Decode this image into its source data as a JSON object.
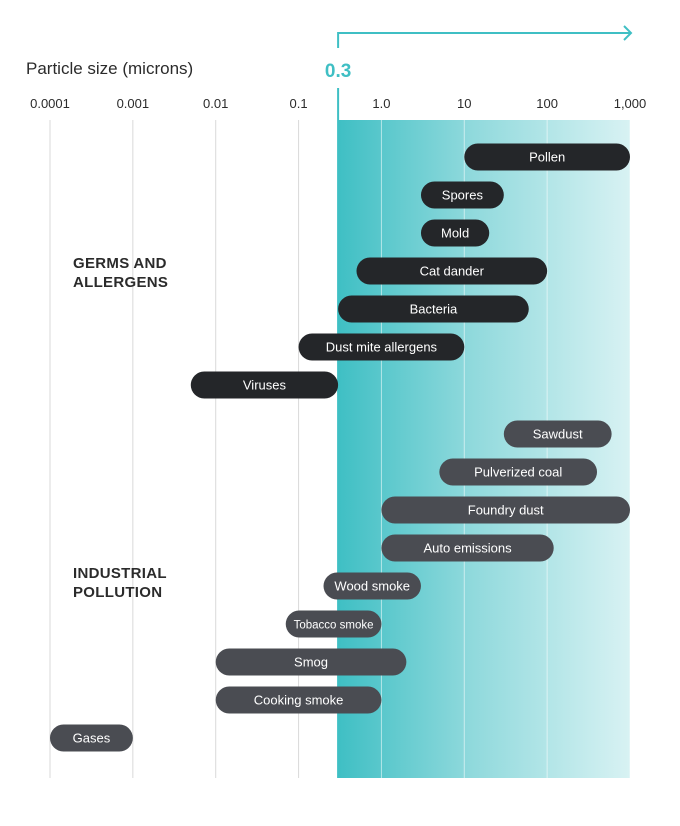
{
  "chart_data": {
    "type": "range-bar",
    "xlabel": "Particle size (microns)",
    "x_scale": "log",
    "xlim": [
      0.0001,
      1000
    ],
    "tick_labels": [
      "0.0001",
      "0.001",
      "0.01",
      "0.1",
      "1.0",
      "10",
      "100",
      "1,000"
    ],
    "tick_values": [
      0.0001,
      0.001,
      0.01,
      0.1,
      1,
      10,
      100,
      1000
    ],
    "marker": {
      "value": 0.3,
      "label": "0.3"
    },
    "colors": {
      "accent": "#3fbfc4",
      "germs": "#242629",
      "industrial": "#4a4c52",
      "grid": "#d9d9d9"
    },
    "groups": [
      {
        "name": "GERMS AND ALLERGENS",
        "lines": [
          "GERMS AND",
          "ALLERGENS"
        ],
        "color": "#242629",
        "items": [
          {
            "label": "Pollen",
            "min": 10,
            "max": 1000
          },
          {
            "label": "Spores",
            "min": 3,
            "max": 30
          },
          {
            "label": "Mold",
            "min": 3,
            "max": 20
          },
          {
            "label": "Cat dander",
            "min": 0.5,
            "max": 100
          },
          {
            "label": "Bacteria",
            "min": 0.3,
            "max": 60
          },
          {
            "label": "Dust mite allergens",
            "min": 0.1,
            "max": 10
          },
          {
            "label": "Viruses",
            "min": 0.005,
            "max": 0.3
          }
        ]
      },
      {
        "name": "INDUSTRIAL POLLUTION",
        "lines": [
          "INDUSTRIAL",
          "POLLUTION"
        ],
        "color": "#4a4c52",
        "items": [
          {
            "label": "Sawdust",
            "min": 30,
            "max": 600
          },
          {
            "label": "Pulverized coal",
            "min": 5,
            "max": 400
          },
          {
            "label": "Foundry dust",
            "min": 1,
            "max": 1000
          },
          {
            "label": "Auto emissions",
            "min": 1,
            "max": 120
          },
          {
            "label": "Wood smoke",
            "min": 0.2,
            "max": 3
          },
          {
            "label": "Tobacco smoke",
            "min": 0.07,
            "max": 1
          },
          {
            "label": "Smog",
            "min": 0.01,
            "max": 2
          },
          {
            "label": "Cooking smoke",
            "min": 0.01,
            "max": 1
          },
          {
            "label": "Gases",
            "min": 0.0001,
            "max": 0.001
          }
        ]
      }
    ]
  }
}
